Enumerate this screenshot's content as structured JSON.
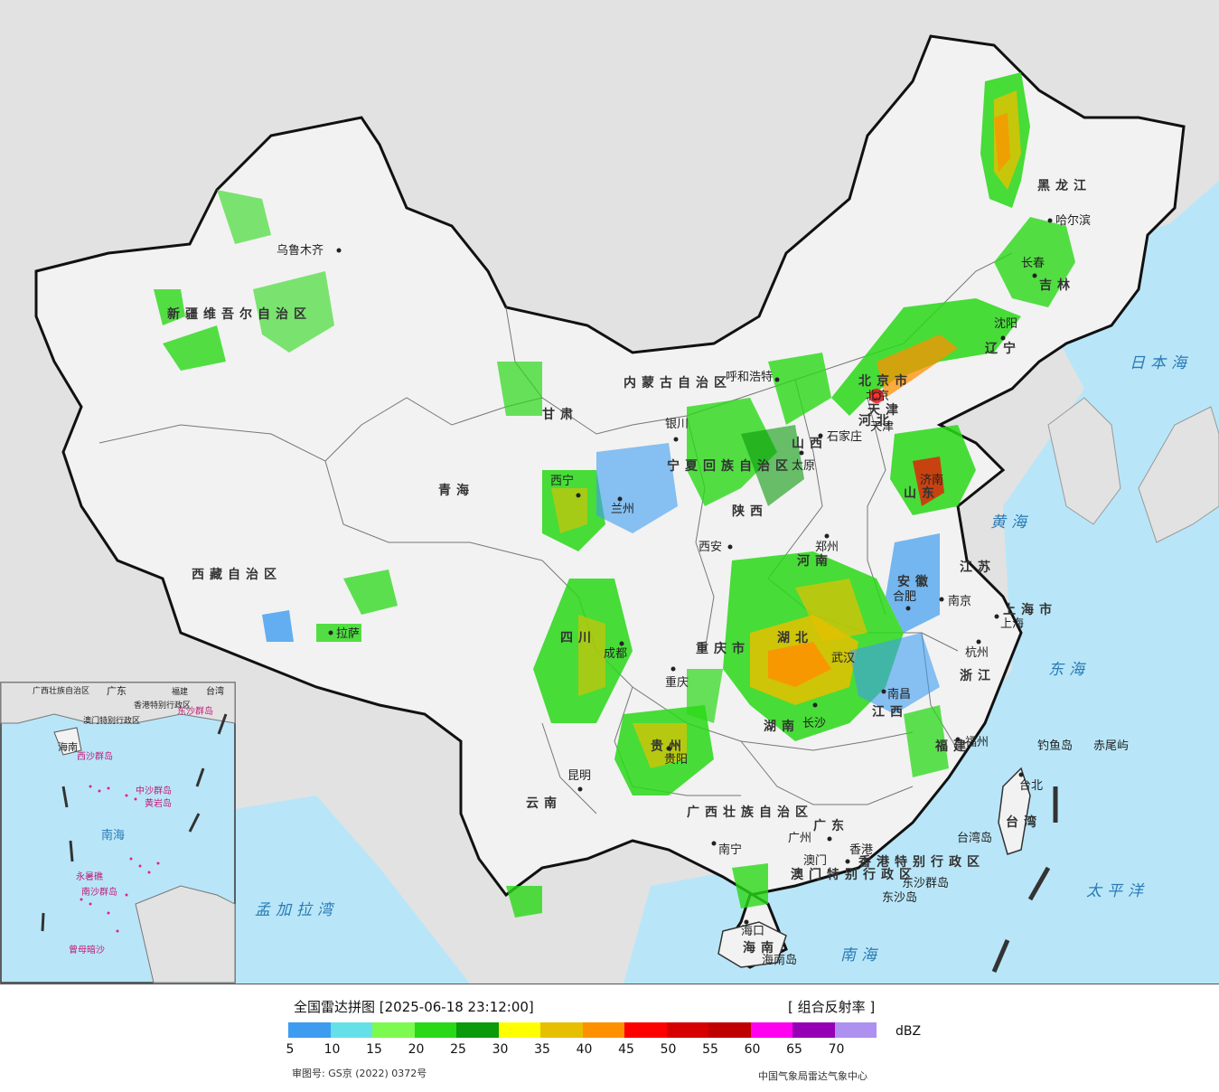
{
  "map": {
    "provinces": [
      "新疆维吾尔自治区",
      "西藏自治区",
      "青海",
      "甘肃",
      "内蒙古自治区",
      "黑龙江",
      "吉林",
      "辽宁",
      "河北",
      "山西",
      "陕西",
      "四川",
      "云南",
      "贵州",
      "重庆市",
      "湖北",
      "湖南",
      "河南",
      "山东",
      "江苏",
      "安徽",
      "浙江",
      "江西",
      "福建",
      "广东",
      "广西壮族自治区",
      "海南",
      "宁夏回族自治区",
      "上海市",
      "天津",
      "北京市",
      "香港特别行政区",
      "澳门特别行政区",
      "台湾"
    ],
    "cities": [
      "乌鲁木齐",
      "拉萨",
      "西宁",
      "兰州",
      "银川",
      "呼和浩特",
      "太原",
      "石家庄",
      "北京",
      "天津",
      "沈阳",
      "长春",
      "哈尔滨",
      "郑州",
      "西安",
      "成都",
      "重庆",
      "贵阳",
      "昆明",
      "南宁",
      "广州",
      "香港",
      "澳门",
      "海口",
      "海南岛",
      "武汉",
      "长沙",
      "南昌",
      "合肥",
      "南京",
      "上海",
      "杭州",
      "福州",
      "台北",
      "台湾岛",
      "钓鱼岛",
      "赤尾屿",
      "东沙群岛",
      "东沙岛",
      "济南"
    ],
    "seas": [
      "日本海",
      "黄海",
      "东海",
      "太平洋",
      "南海",
      "孟加拉湾"
    ],
    "inset": {
      "labels": [
        "广西壮族自治区",
        "广东",
        "福建",
        "台湾",
        "香港特别行政区",
        "澳门特别行政区",
        "东沙群岛",
        "海南",
        "西沙群岛",
        "中沙群岛",
        "黄岩岛",
        "南海",
        "南沙群岛",
        "曾母暗沙",
        "永暑礁"
      ]
    }
  },
  "legend": {
    "title": "全国雷达拼图 [2025-06-18 23:12:00]",
    "product": "[ 组合反射率 ]",
    "unit": "dBZ",
    "colors": [
      "#3d9cf0",
      "#66e0e8",
      "#7dfa4f",
      "#29d817",
      "#0a9a0b",
      "#ffff00",
      "#e6c000",
      "#ff9000",
      "#ff0000",
      "#d60000",
      "#c00000",
      "#ff00f0",
      "#9600b4",
      "#ad90f0"
    ],
    "ticks": [
      "5",
      "10",
      "15",
      "20",
      "25",
      "30",
      "35",
      "40",
      "45",
      "50",
      "55",
      "60",
      "65",
      "70"
    ],
    "review_number": "审图号: GS京 (2022) 0372号",
    "agency": "中国气象局雷达气象中心"
  }
}
